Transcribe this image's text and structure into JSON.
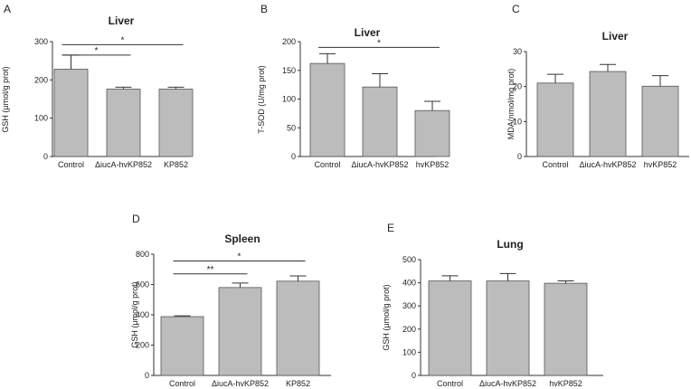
{
  "figure": {
    "colors": {
      "bar_fill": "#bcbcbc",
      "bar_stroke": "#555555",
      "axis": "#333333",
      "text": "#222222"
    }
  },
  "chart_data": [
    {
      "panel": "A",
      "type": "bar",
      "title": "Liver",
      "ylabel": "GSH (μmol/g prot)",
      "ylim": [
        0,
        300
      ],
      "yticks": [
        0,
        100,
        200,
        300
      ],
      "categories": [
        "Control",
        "ΔiucA-hvKP852",
        "KP852"
      ],
      "values": [
        228,
        176,
        176
      ],
      "errors": [
        37,
        5,
        5
      ],
      "significance": [
        {
          "from": 0,
          "to": 1,
          "label": "*",
          "level": 265
        },
        {
          "from": 0,
          "to": 2,
          "label": "*",
          "level": 292
        }
      ]
    },
    {
      "panel": "B",
      "type": "bar",
      "title": "Liver",
      "ylabel": "T-SOD (U/mg prot)",
      "ylim": [
        0,
        200
      ],
      "yticks": [
        0,
        50,
        100,
        150,
        200
      ],
      "categories": [
        "Control",
        "ΔiucA-hvKP852",
        "hvKP852"
      ],
      "values": [
        162,
        121,
        80
      ],
      "errors": [
        17,
        23,
        16
      ],
      "significance": [
        {
          "from": 0,
          "to": 2,
          "label": "*",
          "level": 190
        }
      ]
    },
    {
      "panel": "C",
      "type": "bar",
      "title": "Liver",
      "ylabel": "MDA(nmol/mg prot)",
      "ylim": [
        0,
        30
      ],
      "yticks": [
        0,
        10,
        20,
        30
      ],
      "categories": [
        "Control",
        "ΔiucA-hvKP852",
        "hvKP852"
      ],
      "values": [
        21,
        24.3,
        20.1
      ],
      "errors": [
        2.5,
        2,
        3
      ],
      "significance": []
    },
    {
      "panel": "D",
      "type": "bar",
      "title": "Spleen",
      "ylabel": "GSH (μmol/g prot)",
      "ylim": [
        0,
        800
      ],
      "yticks": [
        0,
        200,
        400,
        600,
        800
      ],
      "categories": [
        "Control",
        "ΔiucA-hvKP852",
        "KP852"
      ],
      "values": [
        388,
        580,
        622
      ],
      "errors": [
        5,
        30,
        35
      ],
      "significance": [
        {
          "from": 0,
          "to": 1,
          "label": "**",
          "level": 670
        },
        {
          "from": 0,
          "to": 2,
          "label": "*",
          "level": 755
        }
      ]
    },
    {
      "panel": "E",
      "type": "bar",
      "title": "Lung",
      "ylabel": "GSH (μmol/g prot)",
      "ylim": [
        0,
        500
      ],
      "yticks": [
        0,
        100,
        200,
        300,
        400,
        500
      ],
      "categories": [
        "Control",
        "ΔiucA-hvKP852",
        "hvKP852"
      ],
      "values": [
        408,
        408,
        398
      ],
      "errors": [
        22,
        32,
        10
      ],
      "significance": []
    }
  ]
}
